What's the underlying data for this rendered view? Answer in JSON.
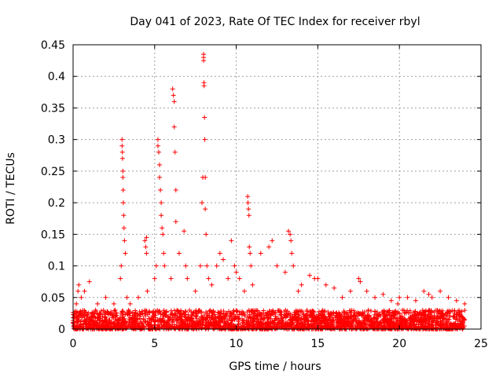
{
  "chart_data": {
    "type": "scatter",
    "title": "Day 041 of 2023, Rate Of TEC Index for receiver rbyl",
    "xlabel": "GPS time / hours",
    "ylabel": "ROTI / TECUs",
    "xlim": [
      0,
      25
    ],
    "ylim": [
      0,
      0.45
    ],
    "xticks": [
      0,
      5,
      10,
      15,
      20,
      25
    ],
    "yticks": [
      0,
      0.05,
      0.1,
      0.15,
      0.2,
      0.25,
      0.3,
      0.35,
      0.4,
      0.45
    ],
    "xtick_labels": [
      "0",
      "5",
      "10",
      "15",
      "20",
      "25"
    ],
    "ytick_labels": [
      "0",
      "0.05",
      "0.1",
      "0.15",
      "0.2",
      "0.25",
      "0.3",
      "0.35",
      "0.4",
      "0.45"
    ],
    "grid": true,
    "marker": "+",
    "color": "#ff0000",
    "series": [
      {
        "name": "ROTI",
        "x": [
          0.1,
          0.2,
          0.3,
          0.35,
          0.5,
          0.7,
          1.0,
          1.5,
          2.0,
          2.5,
          2.9,
          2.95,
          3.0,
          3.0,
          3.02,
          3.03,
          3.05,
          3.05,
          3.07,
          3.08,
          3.1,
          3.12,
          3.15,
          3.2,
          3.3,
          3.5,
          4.0,
          4.4,
          4.45,
          4.5,
          4.5,
          4.55,
          5.0,
          5.1,
          5.2,
          5.2,
          5.25,
          5.3,
          5.3,
          5.35,
          5.4,
          5.4,
          5.45,
          5.5,
          5.55,
          5.6,
          6.0,
          6.1,
          6.15,
          6.2,
          6.2,
          6.25,
          6.3,
          6.3,
          6.5,
          6.8,
          6.9,
          7.0,
          7.5,
          7.8,
          7.9,
          7.95,
          8.0,
          8.0,
          8.0,
          8.02,
          8.03,
          8.05,
          8.07,
          8.1,
          8.1,
          8.15,
          8.2,
          8.3,
          8.5,
          8.8,
          9.0,
          9.2,
          9.5,
          9.7,
          9.9,
          10.0,
          10.2,
          10.5,
          10.7,
          10.72,
          10.75,
          10.78,
          10.8,
          10.85,
          10.9,
          11.0,
          11.5,
          12.0,
          12.2,
          12.5,
          13.0,
          13.2,
          13.3,
          13.35,
          13.4,
          13.5,
          13.8,
          14.0,
          14.5,
          14.8,
          15.0,
          15.5,
          16.0,
          16.5,
          17.0,
          17.5,
          17.6,
          18.0,
          18.5,
          19.0,
          19.5,
          19.9,
          20.0,
          20.5,
          21.0,
          21.5,
          21.8,
          22.0,
          22.5,
          23.0,
          23.5,
          24.0
        ],
        "y": [
          0.02,
          0.04,
          0.06,
          0.07,
          0.05,
          0.06,
          0.075,
          0.04,
          0.05,
          0.04,
          0.08,
          0.1,
          0.3,
          0.29,
          0.28,
          0.27,
          0.25,
          0.24,
          0.22,
          0.2,
          0.18,
          0.16,
          0.14,
          0.12,
          0.05,
          0.04,
          0.05,
          0.14,
          0.13,
          0.12,
          0.145,
          0.06,
          0.08,
          0.1,
          0.3,
          0.29,
          0.28,
          0.26,
          0.24,
          0.22,
          0.2,
          0.18,
          0.16,
          0.15,
          0.12,
          0.1,
          0.08,
          0.38,
          0.37,
          0.36,
          0.32,
          0.28,
          0.22,
          0.17,
          0.12,
          0.155,
          0.1,
          0.08,
          0.06,
          0.1,
          0.2,
          0.24,
          0.43,
          0.435,
          0.425,
          0.39,
          0.385,
          0.335,
          0.3,
          0.24,
          0.19,
          0.15,
          0.1,
          0.08,
          0.07,
          0.1,
          0.12,
          0.11,
          0.08,
          0.14,
          0.1,
          0.09,
          0.08,
          0.06,
          0.21,
          0.2,
          0.19,
          0.18,
          0.13,
          0.12,
          0.1,
          0.07,
          0.12,
          0.13,
          0.14,
          0.1,
          0.09,
          0.155,
          0.15,
          0.14,
          0.12,
          0.1,
          0.06,
          0.07,
          0.085,
          0.08,
          0.08,
          0.07,
          0.065,
          0.05,
          0.06,
          0.08,
          0.075,
          0.06,
          0.05,
          0.055,
          0.045,
          0.04,
          0.05,
          0.05,
          0.045,
          0.06,
          0.055,
          0.05,
          0.06,
          0.05,
          0.045,
          0.04
        ],
        "baseline_band": {
          "x_start": 0.0,
          "x_end": 24.0,
          "y_min": 0.0,
          "y_max_typical": 0.03
        }
      }
    ]
  }
}
